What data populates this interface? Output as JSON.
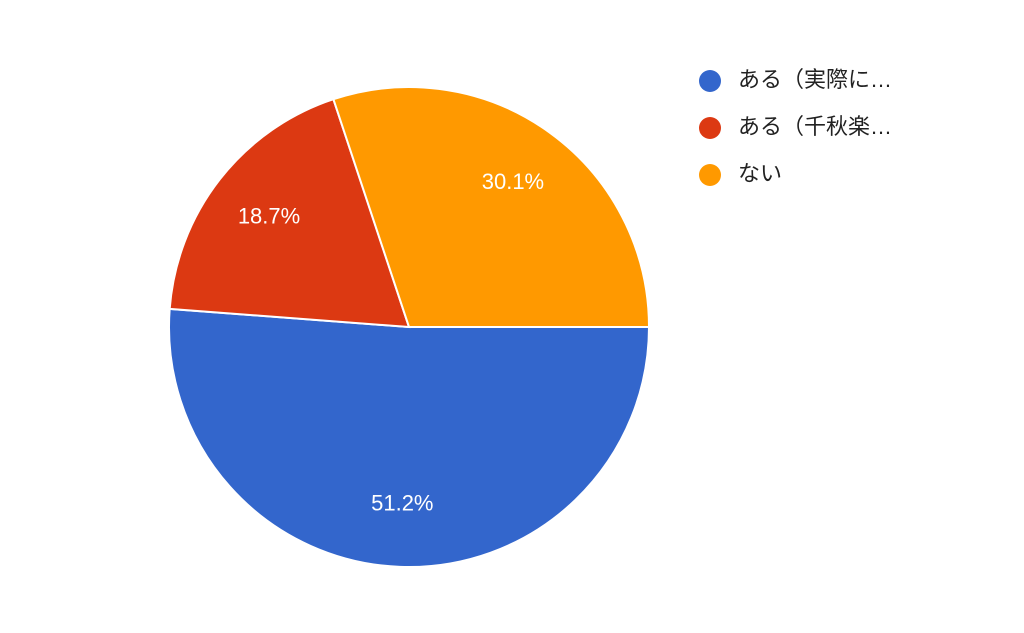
{
  "chart_data": {
    "type": "pie",
    "categories": [
      "ある（実際に…",
      "ある（千秋楽…",
      "ない"
    ],
    "values": [
      51.2,
      18.7,
      30.1
    ],
    "value_labels": [
      "51.2%",
      "18.7%",
      "30.1%"
    ],
    "colors": [
      "#3366cc",
      "#dc3912",
      "#ff9900"
    ],
    "legend": "right"
  }
}
